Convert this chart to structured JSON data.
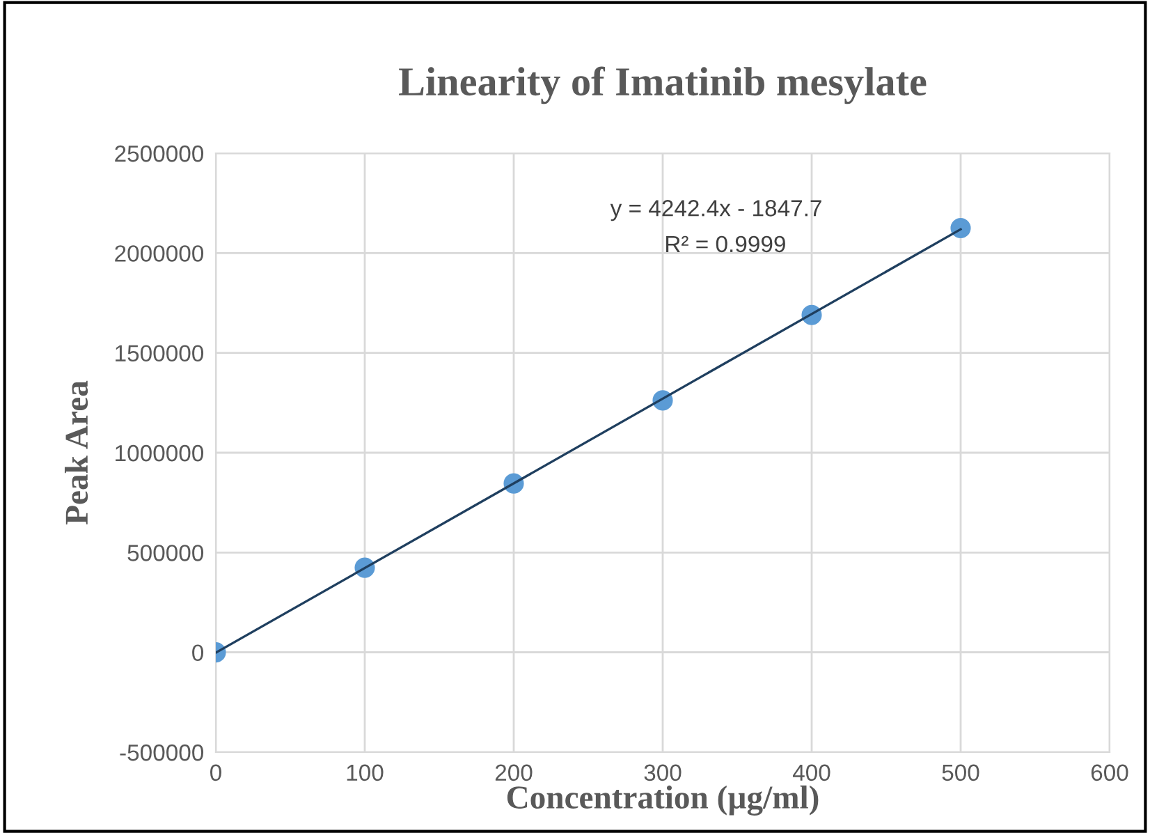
{
  "chart_data": {
    "type": "scatter",
    "title": "Linearity of Imatinib mesylate",
    "xlabel": "Concentration (µg/ml)",
    "ylabel": "Peak Area",
    "series": [
      {
        "color": "#5b9bd5",
        "marker": "circle",
        "x": [
          0,
          100,
          200,
          300,
          400,
          500
        ],
        "values": [
          0,
          424000,
          846000,
          1262000,
          1690000,
          2125000
        ]
      },
      {
        "type": "line",
        "color": "#1f3f5f",
        "x": [
          0,
          500
        ],
        "values": [
          -1800,
          2119000
        ]
      }
    ],
    "annotations": [
      "y = 4242.4x - 1847.7",
      "R² = 0.9999"
    ],
    "xlim": [
      0,
      600
    ],
    "xticks": [
      0,
      100,
      200,
      300,
      400,
      500,
      600
    ],
    "ylim": [
      -500000,
      2500000
    ],
    "yticks": [
      -500000,
      0,
      500000,
      1000000,
      1500000,
      2000000,
      2500000
    ],
    "grid": true
  }
}
